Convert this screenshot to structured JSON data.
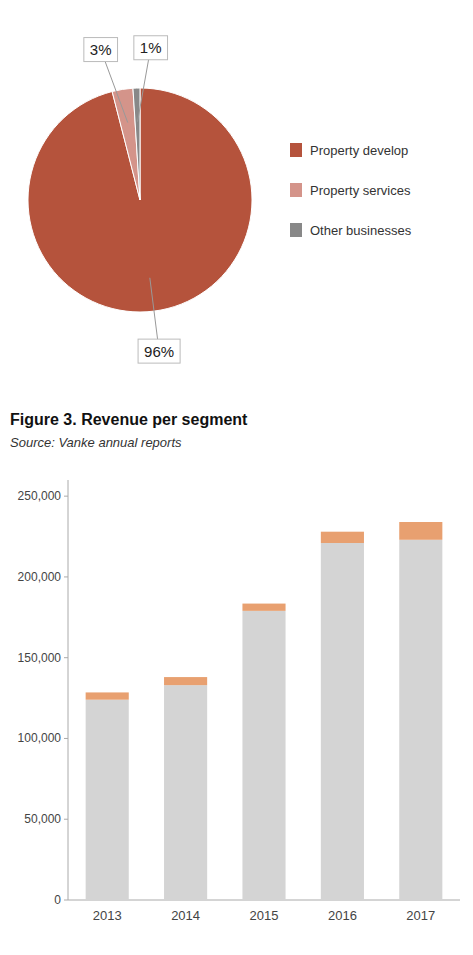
{
  "chart_data": [
    {
      "type": "pie",
      "categories": [
        "Property develop",
        "Property services",
        "Other businesses"
      ],
      "values": [
        96,
        3,
        1
      ],
      "value_labels": [
        "96%",
        "3%",
        "1%"
      ],
      "colors": [
        "#b5533c",
        "#d4948a",
        "#888888"
      ],
      "data_labels": true,
      "legend": "right"
    },
    {
      "type": "bar",
      "title": "Figure 3. Revenue per segment",
      "subtitle": "Source: Vanke annual reports",
      "categories": [
        "2013",
        "2014",
        "2015",
        "2016",
        "2017"
      ],
      "series": [
        {
          "color": "#d4d4d4",
          "values": [
            124000,
            133000,
            179000,
            221000,
            223000
          ]
        },
        {
          "color": "#e8a070",
          "values": [
            4500,
            5000,
            4500,
            7000,
            11000
          ]
        }
      ],
      "stacked": true,
      "ylim": [
        0,
        260000
      ],
      "yticks": [
        0,
        {
          "value": 50000,
          "label": "50,000"
        },
        {
          "value": 100000,
          "label": "100,000"
        },
        {
          "value": 150000,
          "label": "150,000"
        },
        {
          "value": 200000,
          "label": "200,000"
        },
        {
          "value": 250000,
          "label": "250,000"
        }
      ],
      "grid": false
    }
  ]
}
